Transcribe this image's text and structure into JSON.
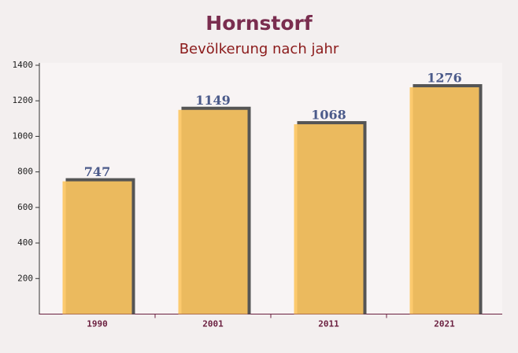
{
  "chart_data": {
    "type": "bar",
    "title": "Hornstorf",
    "subtitle": "Bevölkerung nach jahr",
    "categories": [
      "1990",
      "2001",
      "2011",
      "2021"
    ],
    "values": [
      747,
      1149,
      1068,
      1276
    ],
    "color": "#fcc55f",
    "ylim": [
      0,
      1400
    ],
    "yticks": [
      200,
      400,
      600,
      800,
      1000,
      1200,
      1400
    ]
  }
}
